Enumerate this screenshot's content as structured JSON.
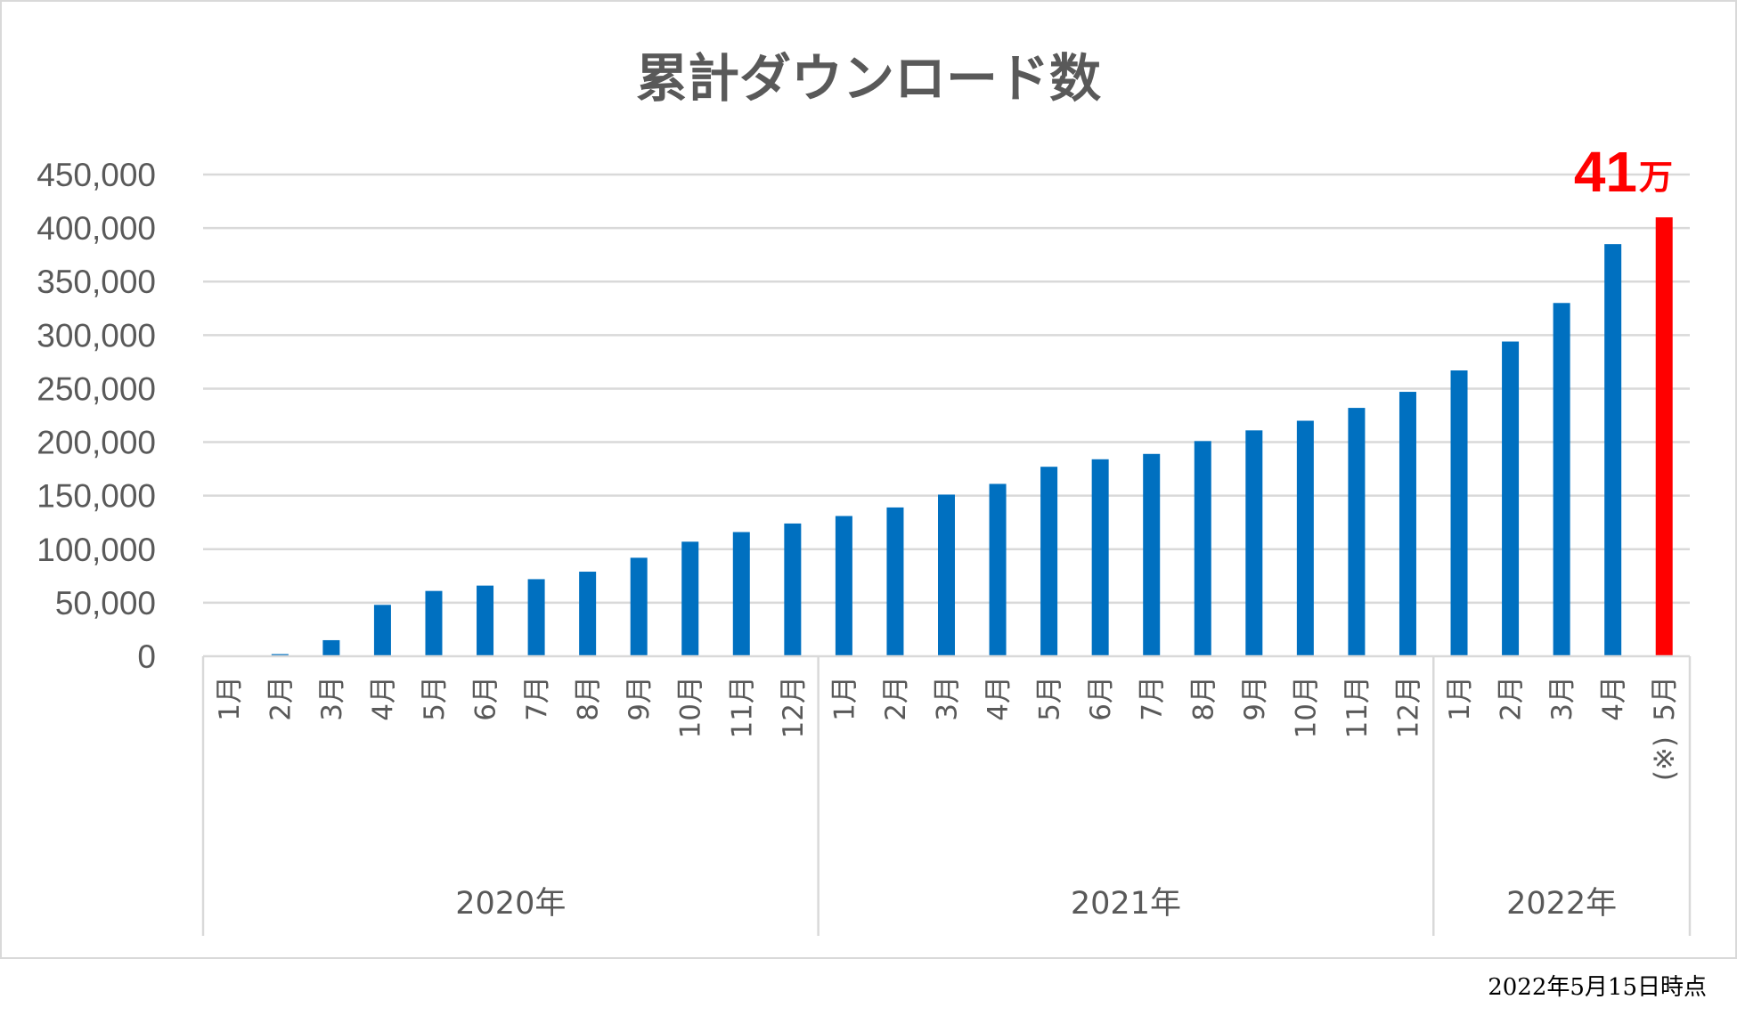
{
  "chart_data": {
    "type": "bar",
    "title": "累計ダウンロード数",
    "ylim": [
      0,
      450000
    ],
    "yticks": [
      0,
      50000,
      100000,
      150000,
      200000,
      250000,
      300000,
      350000,
      400000,
      450000
    ],
    "ytick_labels": [
      "0",
      "50,000",
      "100,000",
      "150,000",
      "200,000",
      "250,000",
      "300,000",
      "350,000",
      "400,000",
      "450,000"
    ],
    "grid": true,
    "categories": [
      "1月",
      "2月",
      "3月",
      "4月",
      "5月",
      "6月",
      "7月",
      "8月",
      "9月",
      "10月",
      "11月",
      "12月",
      "1月",
      "2月",
      "3月",
      "4月",
      "5月",
      "6月",
      "7月",
      "8月",
      "9月",
      "10月",
      "11月",
      "12月",
      "1月",
      "2月",
      "3月",
      "4月",
      "5月"
    ],
    "category_notes": [
      "",
      "",
      "",
      "",
      "",
      "",
      "",
      "",
      "",
      "",
      "",
      "",
      "",
      "",
      "",
      "",
      "",
      "",
      "",
      "",
      "",
      "",
      "",
      "",
      "",
      "",
      "",
      "",
      "(※)"
    ],
    "groups": [
      {
        "label": "2020年",
        "count": 12
      },
      {
        "label": "2021年",
        "count": 12
      },
      {
        "label": "2022年",
        "count": 5
      }
    ],
    "values": [
      0,
      2000,
      15000,
      48000,
      61000,
      66000,
      72000,
      79000,
      92000,
      107000,
      116000,
      124000,
      131000,
      139000,
      151000,
      161000,
      177000,
      184000,
      189000,
      201000,
      211000,
      220000,
      232000,
      247000,
      267000,
      294000,
      330000,
      385000,
      410000
    ],
    "colors": {
      "default": "#0070c0",
      "highlight": "#ff0000"
    },
    "highlight_index": 28,
    "callout": {
      "number": "41",
      "unit": "万"
    }
  },
  "note": "2022年5月15日時点"
}
